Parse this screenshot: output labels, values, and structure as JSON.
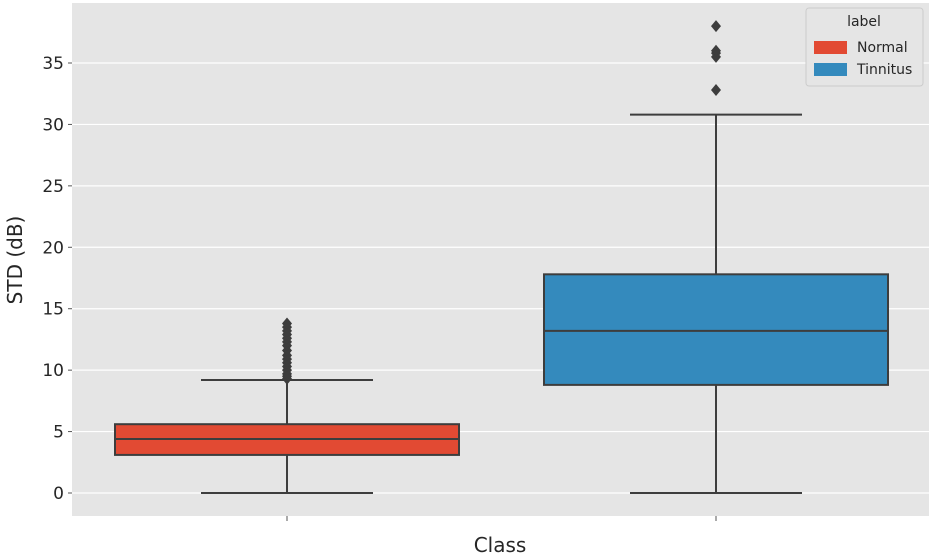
{
  "chart_data": {
    "type": "box",
    "title": "",
    "xlabel": "Class",
    "ylabel": "STD (dB)",
    "ylim": [
      -2,
      39
    ],
    "yticks": [
      0,
      5,
      10,
      15,
      20,
      25,
      30,
      35
    ],
    "grid": true,
    "legend": {
      "title": "label",
      "position": "top-right",
      "entries": [
        {
          "name": "Normal",
          "color": "#e24a33"
        },
        {
          "name": "Tinnitus",
          "color": "#348abd"
        }
      ]
    },
    "boxes": [
      {
        "name": "Normal",
        "color": "#e24a33",
        "whisker_low": 0,
        "q1": 3.1,
        "median": 4.4,
        "q3": 5.6,
        "whisker_high": 9.2,
        "outliers": [
          9.3,
          9.5,
          9.7,
          10.0,
          10.3,
          10.6,
          10.9,
          11.2,
          11.6,
          12.0,
          12.3,
          12.6,
          12.9,
          13.2,
          13.5,
          13.8
        ]
      },
      {
        "name": "Tinnitus",
        "color": "#348abd",
        "whisker_low": 0,
        "q1": 8.8,
        "median": 13.2,
        "q3": 17.8,
        "whisker_high": 30.8,
        "outliers": [
          32.8,
          35.5,
          35.8,
          36.0,
          38.0
        ]
      }
    ]
  }
}
